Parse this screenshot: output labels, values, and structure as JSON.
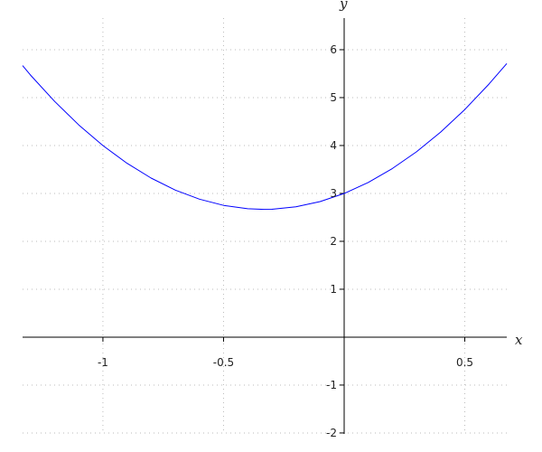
{
  "chart_data": {
    "type": "line",
    "title": "",
    "xlabel": "x",
    "ylabel": "y",
    "xlim": [
      -1.333,
      0.674
    ],
    "ylim": [
      -2.02,
      6.66
    ],
    "grid": true,
    "x_ticks": [
      -1,
      -0.5,
      0.5
    ],
    "x_tick_labels": [
      "-1",
      "-0.5",
      "0.5"
    ],
    "y_ticks": [
      -2,
      -1,
      1,
      2,
      3,
      4,
      5,
      6
    ],
    "y_tick_labels": [
      "-2",
      "-1",
      "1",
      "2",
      "3",
      "4",
      "5",
      "6"
    ],
    "series": [
      {
        "color": "#0000ff",
        "x": [
          -1.333,
          -1.3,
          -1.2,
          -1.1,
          -1.0,
          -0.9,
          -0.8,
          -0.7,
          -0.6,
          -0.5,
          -0.4,
          -0.333,
          -0.3,
          -0.2,
          -0.1,
          0,
          0.1,
          0.2,
          0.3,
          0.4,
          0.5,
          0.6,
          0.674
        ],
        "y": [
          5.667,
          5.47,
          4.92,
          4.43,
          4.0,
          3.63,
          3.32,
          3.07,
          2.88,
          2.75,
          2.68,
          2.667,
          2.67,
          2.72,
          2.83,
          3.0,
          3.23,
          3.52,
          3.87,
          4.28,
          4.75,
          5.28,
          5.71
        ]
      }
    ]
  }
}
